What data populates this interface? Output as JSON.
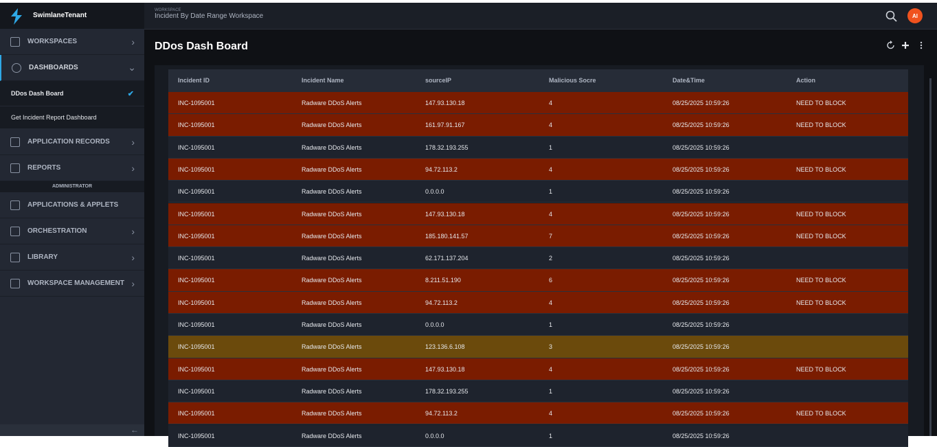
{
  "sidebar": {
    "brand": "SwimlaneTenant",
    "items": [
      {
        "label": "WORKSPACES"
      },
      {
        "label": "DASHBOARDS"
      }
    ],
    "dashboards": [
      "DDos Dash Board",
      "Get Incident Report Dashboard"
    ],
    "items2": [
      {
        "label": "APPLICATION RECORDS"
      },
      {
        "label": "REPORTS"
      }
    ],
    "section": "ADMINISTRATOR",
    "admin_items": [
      {
        "label": "APPLICATIONS & APPLETS"
      },
      {
        "label": "ORCHESTRATION"
      },
      {
        "label": "LIBRARY"
      },
      {
        "label": "WORKSPACE MANAGEMENT"
      }
    ]
  },
  "header": {
    "label": "WORKSPACE",
    "workspace": "Incident By Date Range Workspace",
    "avatar": "AI"
  },
  "page": {
    "title": "DDos Dash Board"
  },
  "table": {
    "columns": [
      "Incident ID",
      "Incident Name",
      "sourceIP",
      "Malicious Socre",
      "Date&Time",
      "Action"
    ],
    "rows": [
      {
        "color": "#7a1c00",
        "cells": [
          "INC-1095001",
          "Radware DDoS Alerts",
          "147.93.130.18",
          "4",
          "08/25/2025 10:59:26",
          "NEED TO BLOCK"
        ]
      },
      {
        "color": "#7a1c00",
        "cells": [
          "INC-1095001",
          "Radware DDoS Alerts",
          "161.97.91.167",
          "4",
          "08/25/2025 10:59:26",
          "NEED TO BLOCK"
        ]
      },
      {
        "color": "#1e232d",
        "cells": [
          "INC-1095001",
          "Radware DDoS Alerts",
          "178.32.193.255",
          "1",
          "08/25/2025 10:59:26"
        ]
      },
      {
        "color": "#7a1c00",
        "cells": [
          "INC-1095001",
          "Radware DDoS Alerts",
          "94.72.113.2",
          "4",
          "08/25/2025 10:59:26",
          "NEED TO BLOCK"
        ]
      },
      {
        "color": "#1e232d",
        "cells": [
          "INC-1095001",
          "Radware DDoS Alerts",
          "0.0.0.0",
          "1",
          "08/25/2025 10:59:26"
        ]
      },
      {
        "color": "#7a1c00",
        "cells": [
          "INC-1095001",
          "Radware DDoS Alerts",
          "147.93.130.18",
          "4",
          "08/25/2025 10:59:26",
          "NEED TO BLOCK"
        ]
      },
      {
        "color": "#7a1c00",
        "cells": [
          "INC-1095001",
          "Radware DDoS Alerts",
          "185.180.141.57",
          "7",
          "08/25/2025 10:59:26",
          "NEED TO BLOCK"
        ]
      },
      {
        "color": "#1e232d",
        "cells": [
          "INC-1095001",
          "Radware DDoS Alerts",
          "62.171.137.204",
          "2",
          "08/25/2025 10:59:26"
        ]
      },
      {
        "color": "#7a1c00",
        "cells": [
          "INC-1095001",
          "Radware DDoS Alerts",
          "8.211.51.190",
          "6",
          "08/25/2025 10:59:26",
          "NEED TO BLOCK"
        ]
      },
      {
        "color": "#7a1c00",
        "cells": [
          "INC-1095001",
          "Radware DDoS Alerts",
          "94.72.113.2",
          "4",
          "08/25/2025 10:59:26",
          "NEED TO BLOCK"
        ]
      },
      {
        "color": "#1e232d",
        "cells": [
          "INC-1095001",
          "Radware DDoS Alerts",
          "0.0.0.0",
          "1",
          "08/25/2025 10:59:26"
        ]
      },
      {
        "color": "#6b4a0c",
        "cells": [
          "INC-1095001",
          "Radware DDoS Alerts",
          "123.136.6.108",
          "3",
          "08/25/2025 10:59:26"
        ]
      },
      {
        "color": "#7a1c00",
        "cells": [
          "INC-1095001",
          "Radware DDoS Alerts",
          "147.93.130.18",
          "4",
          "08/25/2025 10:59:26",
          "NEED TO BLOCK"
        ]
      },
      {
        "color": "#1e232d",
        "cells": [
          "INC-1095001",
          "Radware DDoS Alerts",
          "178.32.193.255",
          "1",
          "08/25/2025 10:59:26"
        ]
      },
      {
        "color": "#7a1c00",
        "cells": [
          "INC-1095001",
          "Radware DDoS Alerts",
          "94.72.113.2",
          "4",
          "08/25/2025 10:59:26",
          "NEED TO BLOCK"
        ]
      },
      {
        "color": "#1e232d",
        "cells": [
          "INC-1095001",
          "Radware DDoS Alerts",
          "0.0.0.0",
          "1",
          "08/25/2025 10:59:26"
        ]
      }
    ]
  }
}
